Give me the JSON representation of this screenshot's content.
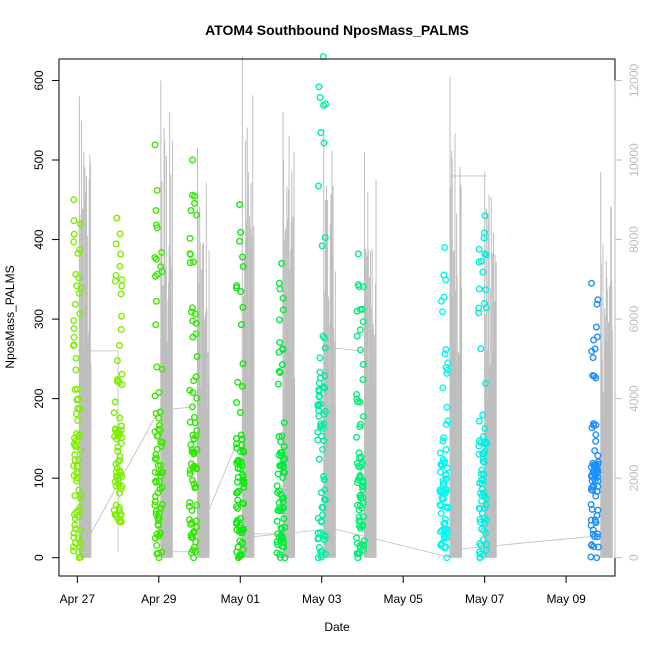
{
  "chart_data": {
    "type": "scatter",
    "title": "ATOM4 Southbound NposMass_PALMS",
    "xlabel": "Date",
    "ylabel": "NposMass_PALMS",
    "x_tick_labels": [
      "Apr 27",
      "Apr 29",
      "May 01",
      "May 03",
      "May 05",
      "May 07",
      "May 09"
    ],
    "x_tick_days": [
      0,
      2,
      4,
      6,
      8,
      10,
      12
    ],
    "xlim_days": [
      -0.45,
      13.2
    ],
    "ylim": [
      -23,
      627
    ],
    "y_ticks": [
      0,
      100,
      200,
      300,
      400,
      500,
      600
    ],
    "y2_ticks": [
      0,
      2000,
      4000,
      6000,
      8000,
      10000,
      12000
    ],
    "y2lim": [
      -460,
      12540
    ],
    "grid": false,
    "secondary_series_color": "#bebebe",
    "flights": [
      {
        "day": 0.0,
        "color": "#7fee00",
        "min": 0,
        "max": 450
      },
      {
        "day": 1.0,
        "color": "#7fee00",
        "min": 45,
        "max": 427
      },
      {
        "day": 2.0,
        "color": "#3ee800",
        "min": 0,
        "max": 519
      },
      {
        "day": 2.85,
        "color": "#30e800",
        "min": 0,
        "max": 500
      },
      {
        "day": 4.0,
        "color": "#10e810",
        "min": 0,
        "max": 444
      },
      {
        "day": 5.0,
        "color": "#00ec3a",
        "min": 0,
        "max": 370
      },
      {
        "day": 6.0,
        "color": "#00f09a",
        "min": 0,
        "max": 630
      },
      {
        "day": 6.95,
        "color": "#00f07a",
        "min": 0,
        "max": 382
      },
      {
        "day": 9.0,
        "color": "#00f8f0",
        "min": 0,
        "max": 390
      },
      {
        "day": 9.95,
        "color": "#00f0e0",
        "min": 0,
        "max": 430
      },
      {
        "day": 12.7,
        "color": "#1e90ff",
        "min": 0,
        "max": 345
      }
    ],
    "secondary_lines": [
      {
        "day": 0.05,
        "max": 11600
      },
      {
        "day": 2.05,
        "max": 12000
      },
      {
        "day": 2.95,
        "max": 10300
      },
      {
        "day": 4.05,
        "max": 12600
      },
      {
        "day": 5.05,
        "max": 11200
      },
      {
        "day": 6.05,
        "max": 10800
      },
      {
        "day": 7.05,
        "max": 10200
      },
      {
        "day": 9.15,
        "max": 12100
      },
      {
        "day": 10.0,
        "max": 9700
      },
      {
        "day": 12.85,
        "max": 9700
      }
    ]
  }
}
